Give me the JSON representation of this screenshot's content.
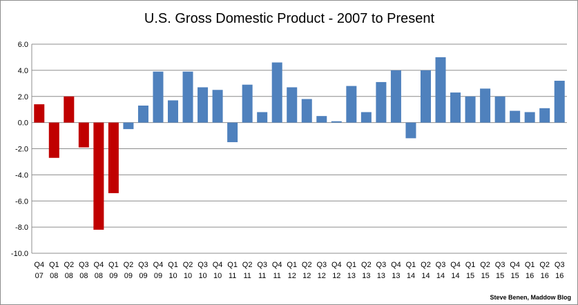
{
  "chart_data": {
    "type": "bar",
    "title": "U.S. Gross Domestic Product - 2007 to Present",
    "xlabel": "",
    "ylabel": "",
    "ylim": [
      -10,
      6
    ],
    "yticks": [
      "6.0",
      "4.0",
      "2.0",
      "0.0",
      "-2.0",
      "-4.0",
      "-6.0",
      "-8.0",
      "-10.0"
    ],
    "grid": true,
    "categories": [
      [
        "Q4",
        "07"
      ],
      [
        "Q1",
        "08"
      ],
      [
        "Q2",
        "08"
      ],
      [
        "Q3",
        "08"
      ],
      [
        "Q4",
        "08"
      ],
      [
        "Q1",
        "09"
      ],
      [
        "Q2",
        "09"
      ],
      [
        "Q3",
        "09"
      ],
      [
        "Q4",
        "09"
      ],
      [
        "Q1",
        "10"
      ],
      [
        "Q2",
        "10"
      ],
      [
        "Q3",
        "10"
      ],
      [
        "Q4",
        "10"
      ],
      [
        "Q1",
        "11"
      ],
      [
        "Q2",
        "11"
      ],
      [
        "Q3",
        "11"
      ],
      [
        "Q4",
        "11"
      ],
      [
        "Q1",
        "12"
      ],
      [
        "Q2",
        "12"
      ],
      [
        "Q3",
        "12"
      ],
      [
        "Q4",
        "12"
      ],
      [
        "Q1",
        "13"
      ],
      [
        "Q2",
        "13"
      ],
      [
        "Q3",
        "13"
      ],
      [
        "Q4",
        "13"
      ],
      [
        "Q1",
        "14"
      ],
      [
        "Q2",
        "14"
      ],
      [
        "Q3",
        "14"
      ],
      [
        "Q4",
        "14"
      ],
      [
        "Q1",
        "15"
      ],
      [
        "Q2",
        "15"
      ],
      [
        "Q3",
        "15"
      ],
      [
        "Q4",
        "15"
      ],
      [
        "Q1",
        "16"
      ],
      [
        "Q2",
        "16"
      ],
      [
        "Q3",
        "16"
      ]
    ],
    "values": [
      1.4,
      -2.7,
      2.0,
      -1.9,
      -8.2,
      -5.4,
      -0.5,
      1.3,
      3.9,
      1.7,
      3.9,
      2.7,
      2.5,
      -1.5,
      2.9,
      0.8,
      4.6,
      2.7,
      1.8,
      0.5,
      0.1,
      2.8,
      0.8,
      3.1,
      4.0,
      -1.2,
      4.0,
      5.0,
      2.3,
      2.0,
      2.6,
      2.0,
      0.9,
      0.8,
      1.1,
      3.2
    ],
    "highlight_count": 6,
    "colors": {
      "highlight": "#c00000",
      "normal": "#4f81bd",
      "grid": "#8c8c8c",
      "axis": "#8c8c8c"
    }
  },
  "credit": "Steve Benen, Maddow Blog"
}
